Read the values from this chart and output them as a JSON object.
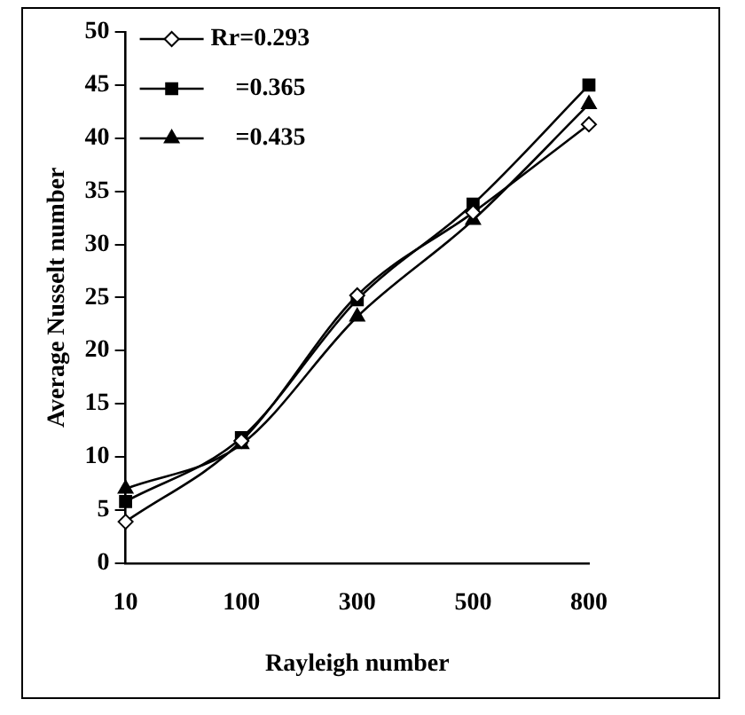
{
  "chart_data": {
    "type": "line",
    "xlabel": "Rayleigh number",
    "ylabel": "Average Nusselt number",
    "categories": [
      "10",
      "100",
      "300",
      "500",
      "800"
    ],
    "series": [
      {
        "name": "Rr=0.293",
        "color": "#000000",
        "marker": "diamond",
        "values": [
          3.9,
          11.5,
          25.2,
          33,
          41.3
        ]
      },
      {
        "name": "=0.365",
        "color": "#000000",
        "marker": "square",
        "values": [
          5.8,
          11.8,
          24.8,
          33.8,
          45
        ]
      },
      {
        "name": "=0.435",
        "color": "#000000",
        "marker": "triangle",
        "values": [
          7,
          11.2,
          23.2,
          32.3,
          43.2
        ]
      }
    ],
    "ylim": [
      0,
      50
    ],
    "yticks": [
      0,
      5,
      10,
      15,
      20,
      25,
      30,
      35,
      40,
      45,
      50
    ],
    "grid": false,
    "legend": "top left",
    "line_style": "solid"
  }
}
